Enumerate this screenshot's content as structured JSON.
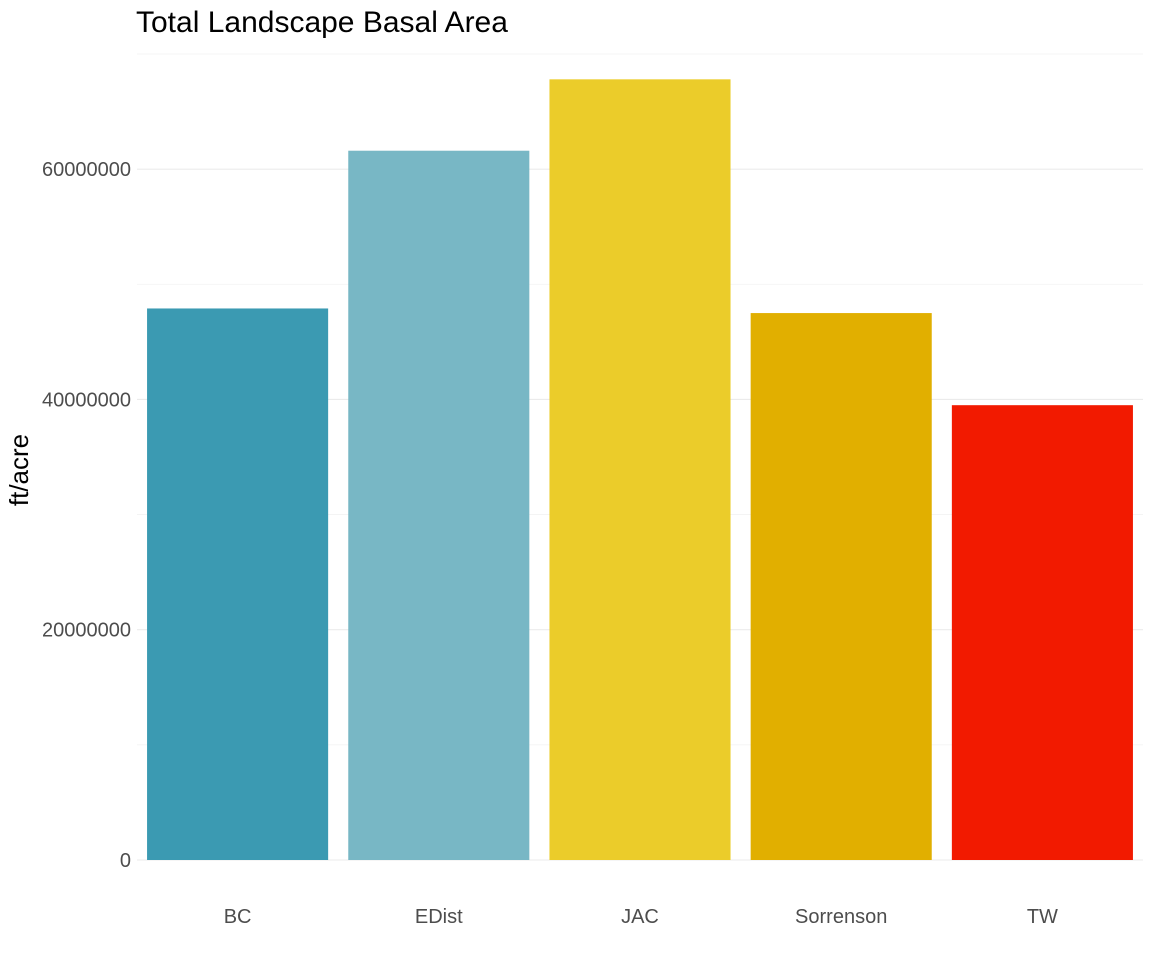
{
  "chart_data": {
    "type": "bar",
    "title": "Total Landscape Basal Area",
    "xlabel": "",
    "ylabel": "ft/acre",
    "categories": [
      "BC",
      "EDist",
      "JAC",
      "Sorrenson",
      "TW"
    ],
    "values": [
      47900000,
      61600000,
      67800000,
      47500000,
      39500000
    ],
    "colors": [
      "#3B9AB2",
      "#78B7C5",
      "#EBCC2A",
      "#E1AF00",
      "#F21A00"
    ],
    "ylim": [
      0,
      70000000
    ],
    "yticks": [
      0,
      20000000,
      40000000,
      60000000
    ],
    "ytick_labels": [
      "0",
      "20000000",
      "40000000",
      "60000000"
    ],
    "grid": true,
    "legend": "none"
  }
}
